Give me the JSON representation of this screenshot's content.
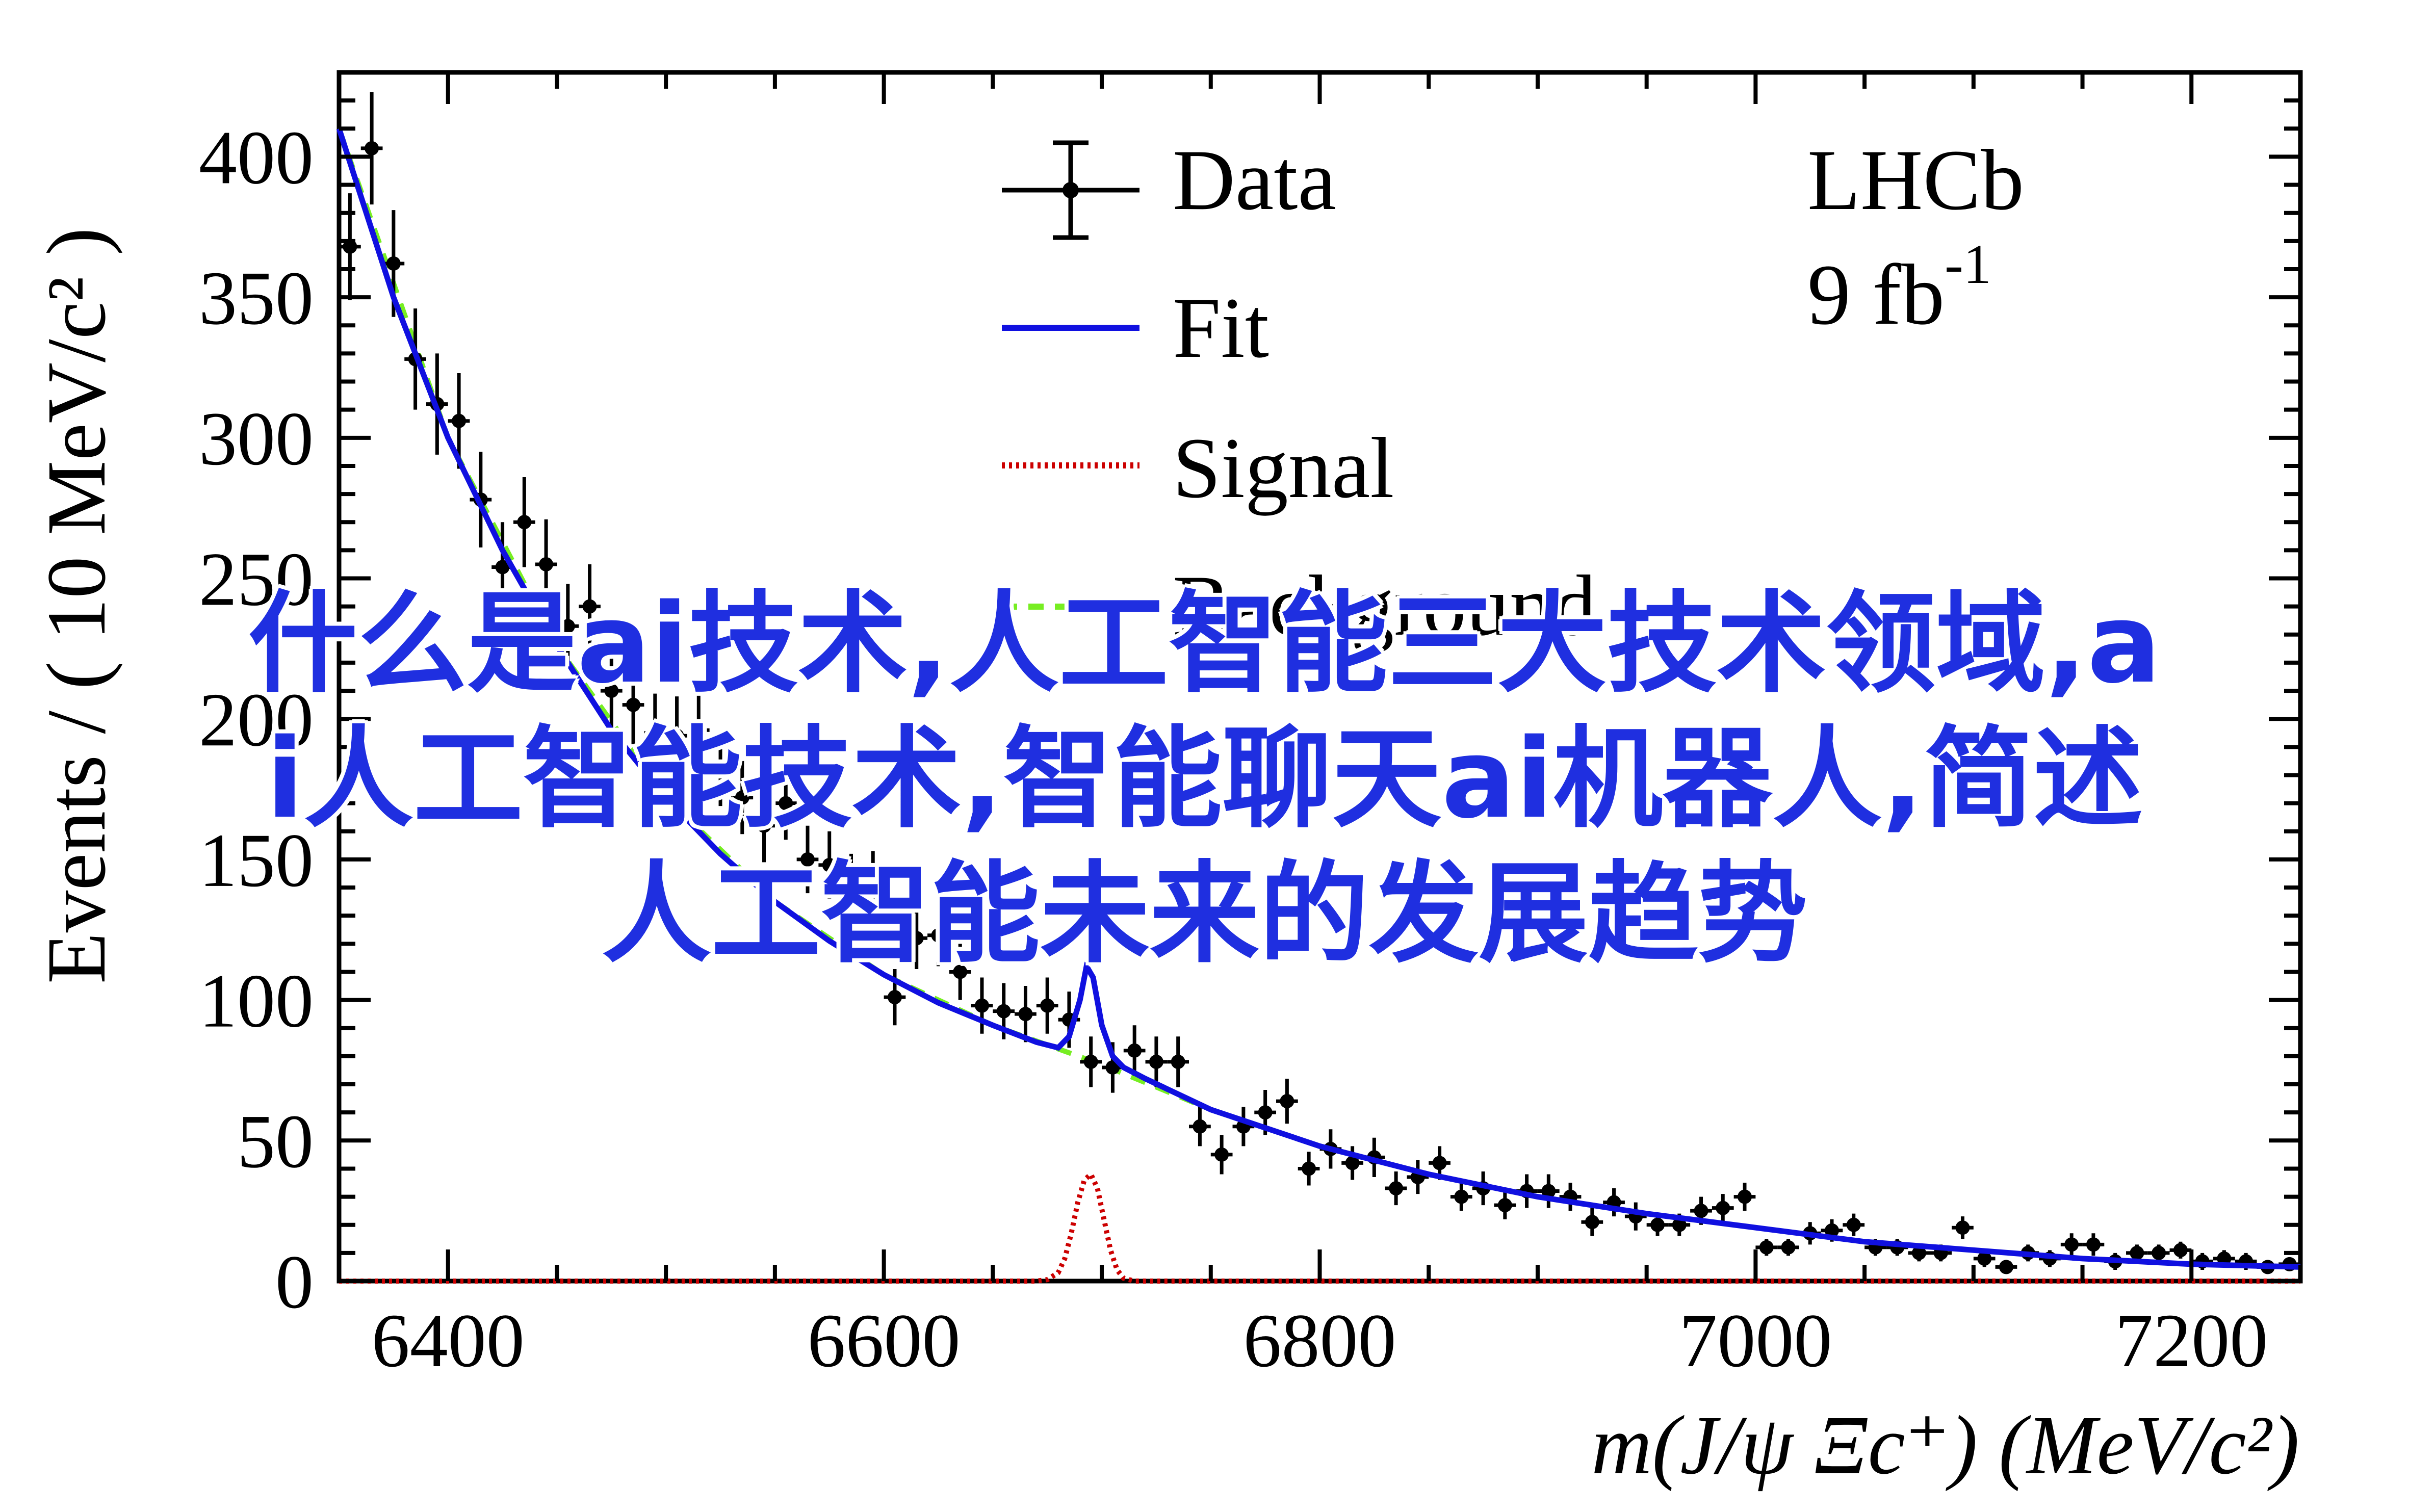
{
  "chart_data": {
    "type": "scatter",
    "experiment": "LHCb",
    "luminosity": "9 fb",
    "luminosity_exp": "-1",
    "ylabel": "Events / ( 10 MeV/c² )",
    "xlabel": "m(J/ψ Ξc⁺) (MeV/c²)",
    "xlim": [
      6350,
      7250
    ],
    "ylim": [
      0,
      430
    ],
    "x_ticks": [
      6400,
      6600,
      6800,
      7000,
      7200
    ],
    "y_ticks": [
      0,
      50,
      100,
      150,
      200,
      250,
      300,
      350,
      400
    ],
    "legend": {
      "position": "top-center",
      "entries": [
        {
          "label": "Data",
          "style": "points-errorbars",
          "color": "#000000"
        },
        {
          "label": "Fit",
          "style": "solid",
          "color": "#1010e0"
        },
        {
          "label": "Signal",
          "style": "dotted",
          "color": "#cc0000"
        },
        {
          "label": "Background",
          "style": "dashed",
          "color": "#77ee22"
        }
      ]
    },
    "data": {
      "x": [
        6355,
        6365,
        6375,
        6385,
        6395,
        6405,
        6415,
        6425,
        6435,
        6445,
        6455,
        6465,
        6475,
        6485,
        6495,
        6505,
        6515,
        6525,
        6535,
        6545,
        6555,
        6565,
        6575,
        6585,
        6595,
        6605,
        6615,
        6625,
        6635,
        6645,
        6655,
        6665,
        6675,
        6685,
        6695,
        6705,
        6715,
        6725,
        6735,
        6745,
        6755,
        6765,
        6775,
        6785,
        6795,
        6805,
        6815,
        6825,
        6835,
        6845,
        6855,
        6865,
        6875,
        6885,
        6895,
        6905,
        6915,
        6925,
        6935,
        6945,
        6955,
        6965,
        6975,
        6985,
        6995,
        7005,
        7015,
        7025,
        7035,
        7045,
        7055,
        7065,
        7075,
        7085,
        7095,
        7105,
        7115,
        7125,
        7135,
        7145,
        7155,
        7165,
        7175,
        7185,
        7195,
        7205,
        7215,
        7225,
        7235,
        7245
      ],
      "y": [
        368,
        403,
        362,
        328,
        312,
        306,
        278,
        254,
        270,
        255,
        233,
        240,
        210,
        205,
        195,
        194,
        196,
        182,
        172,
        162,
        170,
        150,
        148,
        140,
        141,
        101,
        122,
        123,
        110,
        98,
        96,
        95,
        98,
        93,
        78,
        76,
        82,
        78,
        78,
        55,
        45,
        55,
        60,
        64,
        40,
        47,
        42,
        44,
        33,
        37,
        42,
        30,
        33,
        27,
        32,
        32,
        30,
        21,
        28,
        23,
        20,
        20,
        25,
        26,
        30,
        12,
        12,
        17,
        18,
        20,
        12,
        12,
        10,
        10,
        19,
        8,
        5,
        10,
        8,
        13,
        13,
        7,
        10,
        10,
        11,
        7,
        8,
        7,
        5,
        6
      ],
      "yerr": [
        19,
        20,
        19,
        18,
        18,
        17,
        17,
        16,
        16,
        16,
        15,
        15,
        14,
        14,
        14,
        14,
        14,
        13,
        13,
        13,
        13,
        12,
        12,
        12,
        12,
        10,
        11,
        11,
        10,
        10,
        10,
        10,
        10,
        10,
        9,
        9,
        9,
        9,
        9,
        7,
        7,
        7,
        8,
        8,
        6,
        7,
        6,
        7,
        6,
        6,
        6,
        5,
        6,
        5,
        6,
        6,
        5,
        5,
        5,
        5,
        4,
        4,
        5,
        5,
        5,
        3,
        3,
        4,
        4,
        4,
        3,
        3,
        3,
        3,
        4,
        3,
        2,
        3,
        3,
        4,
        4,
        3,
        3,
        3,
        3,
        3,
        3,
        3,
        2,
        2
      ],
      "xerr": 5
    },
    "fit_curve": {
      "x": [
        6350,
        6375,
        6400,
        6425,
        6450,
        6475,
        6500,
        6525,
        6550,
        6575,
        6600,
        6625,
        6650,
        6670,
        6680,
        6685,
        6690,
        6693,
        6696,
        6700,
        6705,
        6710,
        6720,
        6750,
        6800,
        6850,
        6900,
        6950,
        7000,
        7050,
        7100,
        7150,
        7200,
        7250
      ],
      "y": [
        410,
        350,
        300,
        260,
        226,
        196,
        172,
        152,
        135,
        121,
        109,
        99,
        91,
        85,
        83,
        87,
        100,
        112,
        108,
        91,
        80,
        76,
        72,
        61,
        48,
        38,
        30,
        24,
        19,
        14,
        11,
        8,
        6,
        5
      ]
    },
    "signal_curve": {
      "x": [
        6670,
        6675,
        6680,
        6683,
        6686,
        6689,
        6692,
        6695,
        6698,
        6701,
        6704,
        6707,
        6710,
        6715,
        6720
      ],
      "y": [
        0,
        0.5,
        3,
        8,
        17,
        28,
        36,
        38,
        33,
        22,
        11,
        4,
        1,
        0,
        0
      ]
    },
    "background_curve": {
      "x": [
        6350,
        6400,
        6450,
        6500,
        6550,
        6600,
        6650,
        6700,
        6750,
        6800,
        6850,
        6900,
        6950,
        7000,
        7050,
        7100,
        7150,
        7200,
        7250
      ],
      "y": [
        410,
        300,
        226,
        172,
        135,
        109,
        91,
        77,
        61,
        48,
        38,
        30,
        24,
        19,
        14,
        11,
        8,
        6,
        5
      ]
    }
  },
  "overlay_text": {
    "line1": "什么是ai技术,人工智能三大技术领域,a",
    "line2": "i人工智能技术,智能聊天ai机器人,简述",
    "line3": "人工智能未来的发展趋势"
  }
}
